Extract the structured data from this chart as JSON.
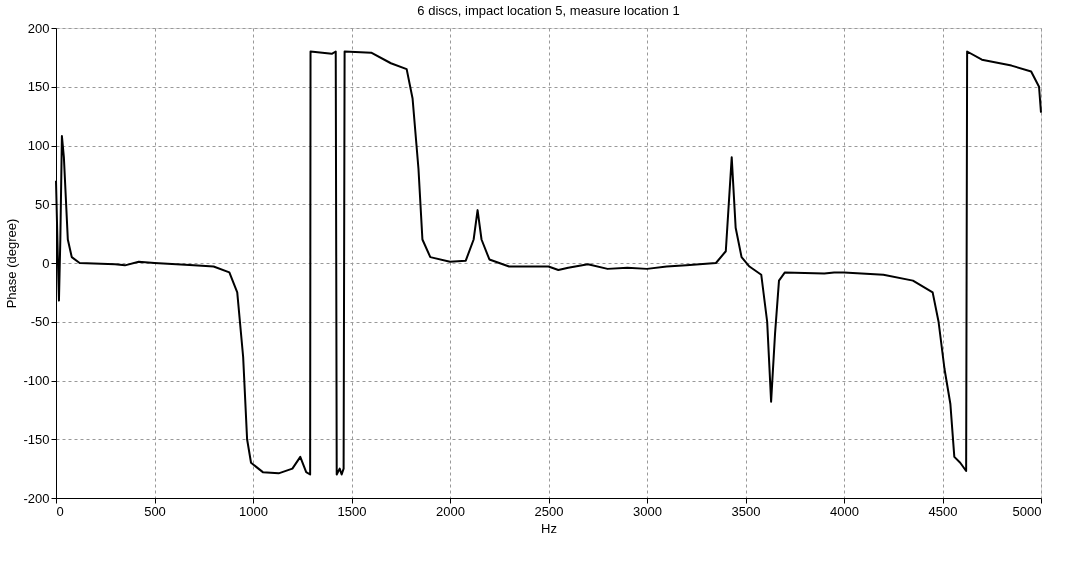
{
  "chart_data": {
    "type": "line",
    "title": "6 discs, impact location 5, measure location 1",
    "xlabel": "Hz",
    "ylabel": "Phase (degree)",
    "xlim": [
      0,
      5000
    ],
    "ylim": [
      -200,
      200
    ],
    "xticks": [
      0,
      500,
      1000,
      1500,
      2000,
      2500,
      3000,
      3500,
      4000,
      4500,
      5000
    ],
    "yticks": [
      -200,
      -150,
      -100,
      -50,
      0,
      50,
      100,
      150,
      200
    ],
    "grid": true,
    "line_style": "solid",
    "marker": "none",
    "series": [
      {
        "color": "#000000",
        "x": [
          0,
          10,
          15,
          22,
          30,
          40,
          60,
          80,
          120,
          300,
          350,
          420,
          500,
          700,
          800,
          880,
          920,
          950,
          970,
          990,
          1050,
          1130,
          1200,
          1240,
          1270,
          1290,
          1292,
          1400,
          1420,
          1425,
          1440,
          1450,
          1460,
          1465,
          1600,
          1700,
          1780,
          1810,
          1830,
          1840,
          1860,
          1900,
          2000,
          2080,
          2120,
          2140,
          2160,
          2200,
          2300,
          2500,
          2550,
          2600,
          2700,
          2800,
          2900,
          3000,
          3100,
          3200,
          3350,
          3400,
          3430,
          3450,
          3480,
          3520,
          3580,
          3610,
          3630,
          3650,
          3670,
          3700,
          3900,
          3950,
          4000,
          4200,
          4350,
          4450,
          4480,
          4510,
          4540,
          4560,
          4590,
          4620,
          4625,
          4700,
          4850,
          4950,
          4990,
          5000
        ],
        "values": [
          70,
          0,
          -32,
          20,
          108,
          90,
          20,
          5,
          0,
          -1,
          -2,
          1,
          0,
          -2,
          -3,
          -8,
          -25,
          -80,
          -150,
          -170,
          -178,
          -179,
          -175,
          -165,
          -178,
          -180,
          180,
          178,
          180,
          -180,
          -175,
          -180,
          -175,
          180,
          179,
          170,
          165,
          140,
          100,
          80,
          20,
          5,
          1,
          2,
          20,
          45,
          20,
          3,
          -3,
          -3,
          -6,
          -4,
          -1,
          -5,
          -4,
          -5,
          -3,
          -2,
          0,
          10,
          90,
          30,
          5,
          -3,
          -10,
          -50,
          -118,
          -60,
          -15,
          -8,
          -9,
          -8,
          -8,
          -10,
          -15,
          -25,
          -50,
          -90,
          -120,
          -165,
          -170,
          -177,
          180,
          173,
          168,
          163,
          150,
          128
        ]
      }
    ]
  }
}
